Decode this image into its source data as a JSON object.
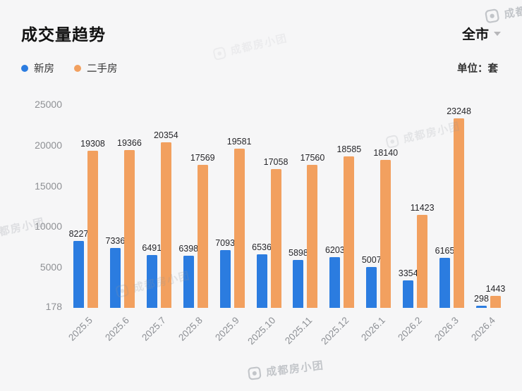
{
  "header": {
    "title": "成交量趋势",
    "region_selector": {
      "label": "全市"
    },
    "unit_label": "单位：套"
  },
  "legend": {
    "items": [
      {
        "label": "新房",
        "color": "#2b7ce0"
      },
      {
        "label": "二手房",
        "color": "#f2a05f"
      }
    ]
  },
  "watermark": {
    "text": "成都房小团"
  },
  "chart_data": {
    "type": "bar",
    "title": "成交量趋势",
    "unit": "套",
    "categories": [
      "2025.5",
      "2025.6",
      "2025.7",
      "2025.8",
      "2025.9",
      "2025.10",
      "2025.11",
      "2025.12",
      "2026.1",
      "2026.2",
      "2026.3",
      "2026.4"
    ],
    "series": [
      {
        "name": "新房",
        "color": "#2b7ce0",
        "values": [
          8227,
          7336,
          6491,
          6398,
          7093,
          6536,
          5898,
          6203,
          5007,
          3354,
          6165,
          298
        ]
      },
      {
        "name": "二手房",
        "color": "#f2a05f",
        "values": [
          19308,
          19366,
          20354,
          17569,
          19581,
          17058,
          17560,
          18585,
          18140,
          11423,
          23248,
          1443
        ]
      }
    ],
    "ylim": [
      0,
      25000
    ],
    "yticks": [
      25000,
      20000,
      15000,
      10000,
      5000,
      178
    ],
    "grid": false,
    "legend_position": "top-left",
    "x_label_rotation": 45
  }
}
